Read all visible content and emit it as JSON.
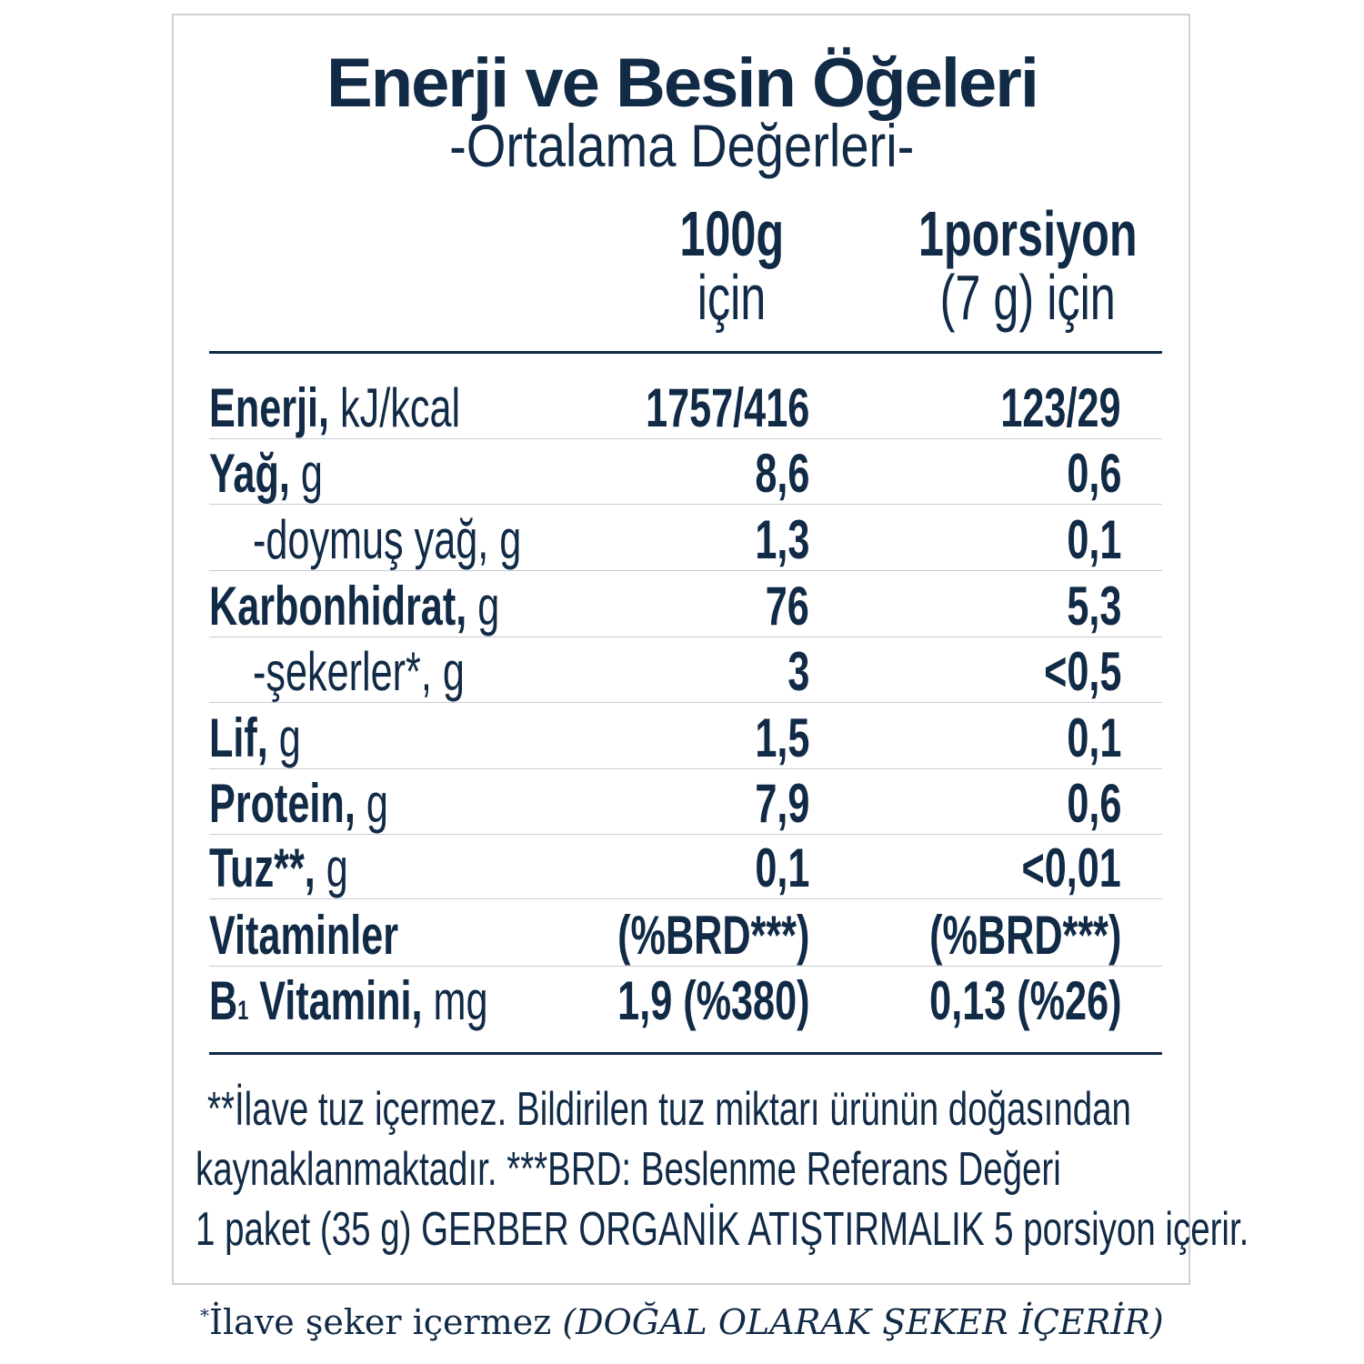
{
  "header": {
    "title": "Enerji ve Besin Öğeleri",
    "subtitle": "-Ortalama Değerleri-"
  },
  "columns": [
    {
      "line1": "100g",
      "line2": "için"
    },
    {
      "line1": "1porsiyon",
      "line2": "(7 g) için"
    }
  ],
  "rows": [
    {
      "name": "Enerji,",
      "unit": " kJ/kcal",
      "v100": "1757/416",
      "vportion": "123/29",
      "indent": false
    },
    {
      "name": "Yağ,",
      "unit": " g",
      "v100": "8,6",
      "vportion": "0,6",
      "indent": false
    },
    {
      "name": "",
      "unit": "-doymuş yağ, g",
      "v100": "1,3",
      "vportion": "0,1",
      "indent": true
    },
    {
      "name": "Karbonhidrat,",
      "unit": " g",
      "v100": "76",
      "vportion": "5,3",
      "indent": false
    },
    {
      "name": "",
      "unit": "-şekerler*, g",
      "v100": "3",
      "vportion": "<0,5",
      "indent": true
    },
    {
      "name": "Lif,",
      "unit": " g",
      "v100": "1,5",
      "vportion": "0,1",
      "indent": false
    },
    {
      "name": "Protein,",
      "unit": " g",
      "v100": "7,9",
      "vportion": "0,6",
      "indent": false
    },
    {
      "name": "Tuz**,",
      "unit": " g",
      "v100": "0,1",
      "vportion": "<0,01",
      "indent": false
    },
    {
      "name": "Vitaminler",
      "unit": "",
      "v100": "(%BRD***)",
      "vportion": "(%BRD***)",
      "indent": false
    },
    {
      "name": "B",
      "sub": "1",
      "name2": " Vitamini,",
      "unit": " mg",
      "v100": "1,9 (%380)",
      "vportion": "0,13 (%26)",
      "indent": false
    }
  ],
  "footnotes": [
    "**İlave tuz içermez. Bildirilen tuz miktarı ürünün doğasından",
    "kaynaklanmaktadır. ***BRD: Beslenme Referans Değeri",
    "1 paket (35 g) GERBER ORGANİK ATIŞTIRMALIK 5 porsiyon içerir."
  ],
  "note": {
    "star": "*",
    "text": "İlave şeker içermez ",
    "italic": "(DOĞAL OLARAK ŞEKER İÇERİR)"
  },
  "colors": {
    "text": "#112a46",
    "border": "#cfcfcf"
  }
}
